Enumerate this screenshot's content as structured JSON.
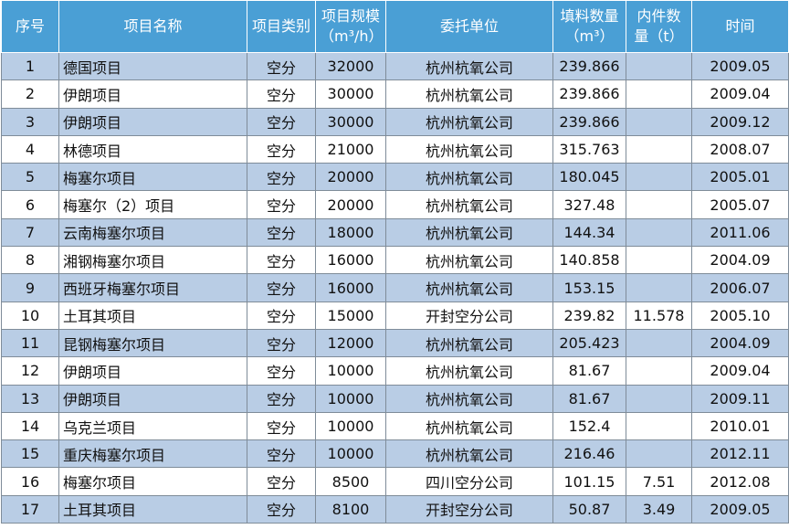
{
  "table": {
    "header": [
      "序号",
      "项目名称",
      "项目类别",
      "项目规模（m³/h）",
      "委托单位",
      "填料数量（m³）",
      "内件数量（t）",
      "时间"
    ],
    "rows": [
      [
        "1",
        "德国项目",
        "空分",
        "32000",
        "杭州杭氧公司",
        "239.866",
        null,
        "2009.05"
      ],
      [
        "2",
        "伊朗项目",
        "空分",
        "30000",
        "杭州杭氧公司",
        "239.866",
        null,
        "2009.04"
      ],
      [
        "3",
        "伊朗项目",
        "空分",
        "30000",
        "杭州杭氧公司",
        "239.866",
        null,
        "2009.12"
      ],
      [
        "4",
        "林德项目",
        "空分",
        "21000",
        "杭州杭氧公司",
        "315.763",
        null,
        "2008.07"
      ],
      [
        "5",
        "梅塞尔项目",
        "空分",
        "20000",
        "杭州杭氧公司",
        "180.045",
        null,
        "2005.01"
      ],
      [
        "6",
        "梅塞尔（2）项目",
        "空分",
        "20000",
        "杭州杭氧公司",
        "327.48",
        null,
        "2005.07"
      ],
      [
        "7",
        "云南梅塞尔项目",
        "空分",
        "18000",
        "杭州杭氧公司",
        "144.34",
        null,
        "2011.06"
      ],
      [
        "8",
        "湘钢梅塞尔项目",
        "空分",
        "16000",
        "杭州杭氧公司",
        "140.858",
        null,
        "2004.09"
      ],
      [
        "9",
        "西班牙梅塞尔项目",
        "空分",
        "16000",
        "杭州杭氧公司",
        "153.15",
        null,
        "2006.07"
      ],
      [
        "10",
        "土耳其项目",
        "空分",
        "15000",
        "开封空分公司",
        "239.82",
        "11.578",
        "2005.10"
      ],
      [
        "11",
        "昆钢梅塞尔项目",
        "空分",
        "12000",
        "杭州杭氧公司",
        "205.423",
        null,
        "2004.09"
      ],
      [
        "12",
        "伊朗项目",
        "空分",
        "10000",
        "杭州杭氧公司",
        "81.67",
        null,
        "2009.04"
      ],
      [
        "13",
        "伊朗项目",
        "空分",
        "10000",
        "杭州杭氧公司",
        "81.67",
        null,
        "2009.11"
      ],
      [
        "14",
        "乌克兰项目",
        "空分",
        "10000",
        "杭州杭氧公司",
        "152.4",
        null,
        "2010.01"
      ],
      [
        "15",
        "重庆梅塞尔项目",
        "空分",
        "10000",
        "杭州杭氧公司",
        "216.46",
        null,
        "2012.11"
      ],
      [
        "16",
        "梅塞尔项目",
        "空分",
        "8500",
        "四川空分公司",
        "101.15",
        "7.51",
        "2012.08"
      ],
      [
        "17",
        "土耳其项目",
        "空分",
        "8100",
        "开封空分公司",
        "50.87",
        "3.49",
        "2009.05"
      ]
    ]
  }
}
